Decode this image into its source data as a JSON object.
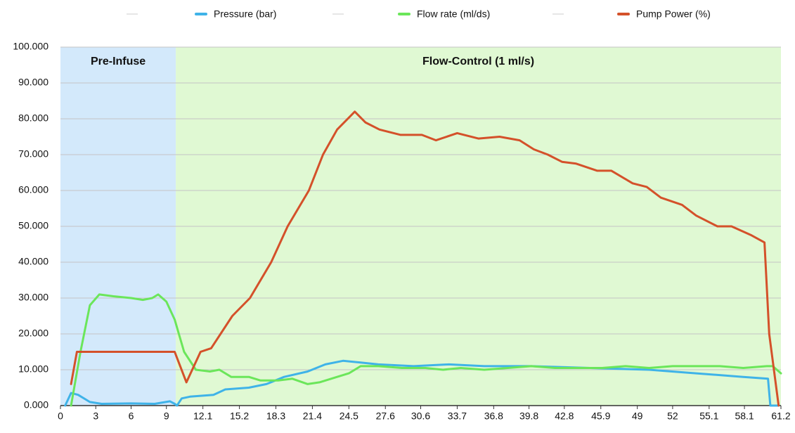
{
  "chart_data": {
    "type": "line",
    "xlim": [
      0,
      61.2
    ],
    "ylim": [
      0,
      100
    ],
    "xticks": [
      0,
      3,
      6,
      9,
      12.1,
      15.2,
      18.3,
      21.4,
      24.5,
      27.6,
      30.6,
      33.7,
      36.8,
      39.8,
      42.8,
      45.9,
      49,
      52,
      55.1,
      58.1,
      61.2
    ],
    "yticks": [
      {
        "value": 0,
        "label": "0.000"
      },
      {
        "value": 10,
        "label": "10.000"
      },
      {
        "value": 20,
        "label": "20.000"
      },
      {
        "value": 30,
        "label": "30.000"
      },
      {
        "value": 40,
        "label": "40.000"
      },
      {
        "value": 50,
        "label": "50.000"
      },
      {
        "value": 60,
        "label": "60.000"
      },
      {
        "value": 70,
        "label": "70.000"
      },
      {
        "value": 80,
        "label": "80.000"
      },
      {
        "value": 90,
        "label": "90.000"
      },
      {
        "value": 100,
        "label": "100.000"
      }
    ],
    "grid": true,
    "phases": [
      {
        "label": "Pre-Infuse",
        "start": 0,
        "end": 9.8,
        "color": "#d3e9fb"
      },
      {
        "label": "Flow-Control (1 ml/s)",
        "start": 9.8,
        "end": 61.2,
        "color": "#e0f9d3"
      }
    ],
    "series": [
      {
        "name": "Pressure (bar)",
        "color": "#3fb3e8",
        "x": [
          0.4,
          0.9,
          1.5,
          2.5,
          3.5,
          6,
          8,
          9.3,
          9.7,
          9.9,
          10.3,
          11,
          13,
          14,
          16,
          17.5,
          19,
          21,
          22.5,
          24,
          25.5,
          27,
          30,
          33,
          36,
          40,
          45,
          50,
          54,
          58,
          60.1,
          60.3,
          61
        ],
        "values": [
          0,
          3.5,
          3,
          1,
          0.5,
          0.6,
          0.5,
          1.2,
          0.5,
          0,
          2,
          2.5,
          3,
          4.5,
          5,
          6,
          8,
          9.5,
          11.5,
          12.5,
          12,
          11.5,
          11,
          11.5,
          11,
          11,
          10.5,
          10,
          9,
          8,
          7.5,
          0,
          0
        ]
      },
      {
        "name": "Flow rate (ml/ds)",
        "color": "#6be65a",
        "x": [
          0.9,
          1.7,
          2.5,
          3.3,
          4.5,
          6,
          7,
          7.8,
          8.3,
          9,
          9.7,
          10.5,
          11.5,
          12.7,
          13.5,
          14.5,
          16,
          17,
          18.5,
          19.7,
          21,
          22,
          23.5,
          24.5,
          25.5,
          27,
          29,
          31,
          32.5,
          34,
          36,
          38,
          40,
          42,
          44,
          46,
          48,
          50,
          52,
          54,
          56,
          58,
          60,
          60.5,
          61.2
        ],
        "values": [
          0,
          15,
          28,
          31,
          30.5,
          30,
          29.5,
          30,
          31,
          29,
          24,
          15,
          10,
          9.5,
          10,
          8,
          8,
          7,
          7,
          7.5,
          6,
          6.5,
          8,
          9,
          11,
          11,
          10.5,
          10.5,
          10,
          10.5,
          10,
          10.5,
          11,
          10.5,
          10.5,
          10.5,
          11,
          10.5,
          11,
          11,
          11,
          10.5,
          11,
          11,
          9
        ]
      },
      {
        "name": "Pump Power (%)",
        "color": "#d4512a",
        "x": [
          0.9,
          1.4,
          9.7,
          10.7,
          11.9,
          12.8,
          14.6,
          16.1,
          17.9,
          19.3,
          21.1,
          22.3,
          23.5,
          24.7,
          25,
          25.9,
          27.1,
          28.9,
          30.7,
          31.9,
          33.7,
          35.5,
          37.3,
          39,
          40.2,
          41.4,
          42.6,
          43.8,
          45.6,
          46.8,
          48.6,
          49.8,
          51,
          52.8,
          54,
          55.8,
          57,
          58.7,
          59.8,
          60.2,
          61
        ],
        "values": [
          6,
          15,
          15,
          6.5,
          15,
          16,
          25,
          30,
          40,
          50,
          60,
          70,
          77,
          81,
          82,
          79,
          77,
          75.5,
          75.5,
          74,
          76,
          74.5,
          75,
          74,
          71.5,
          70,
          68,
          67.5,
          65.5,
          65.5,
          62,
          61,
          58,
          56,
          53,
          50,
          50,
          47.5,
          45.5,
          20,
          0
        ]
      }
    ]
  }
}
